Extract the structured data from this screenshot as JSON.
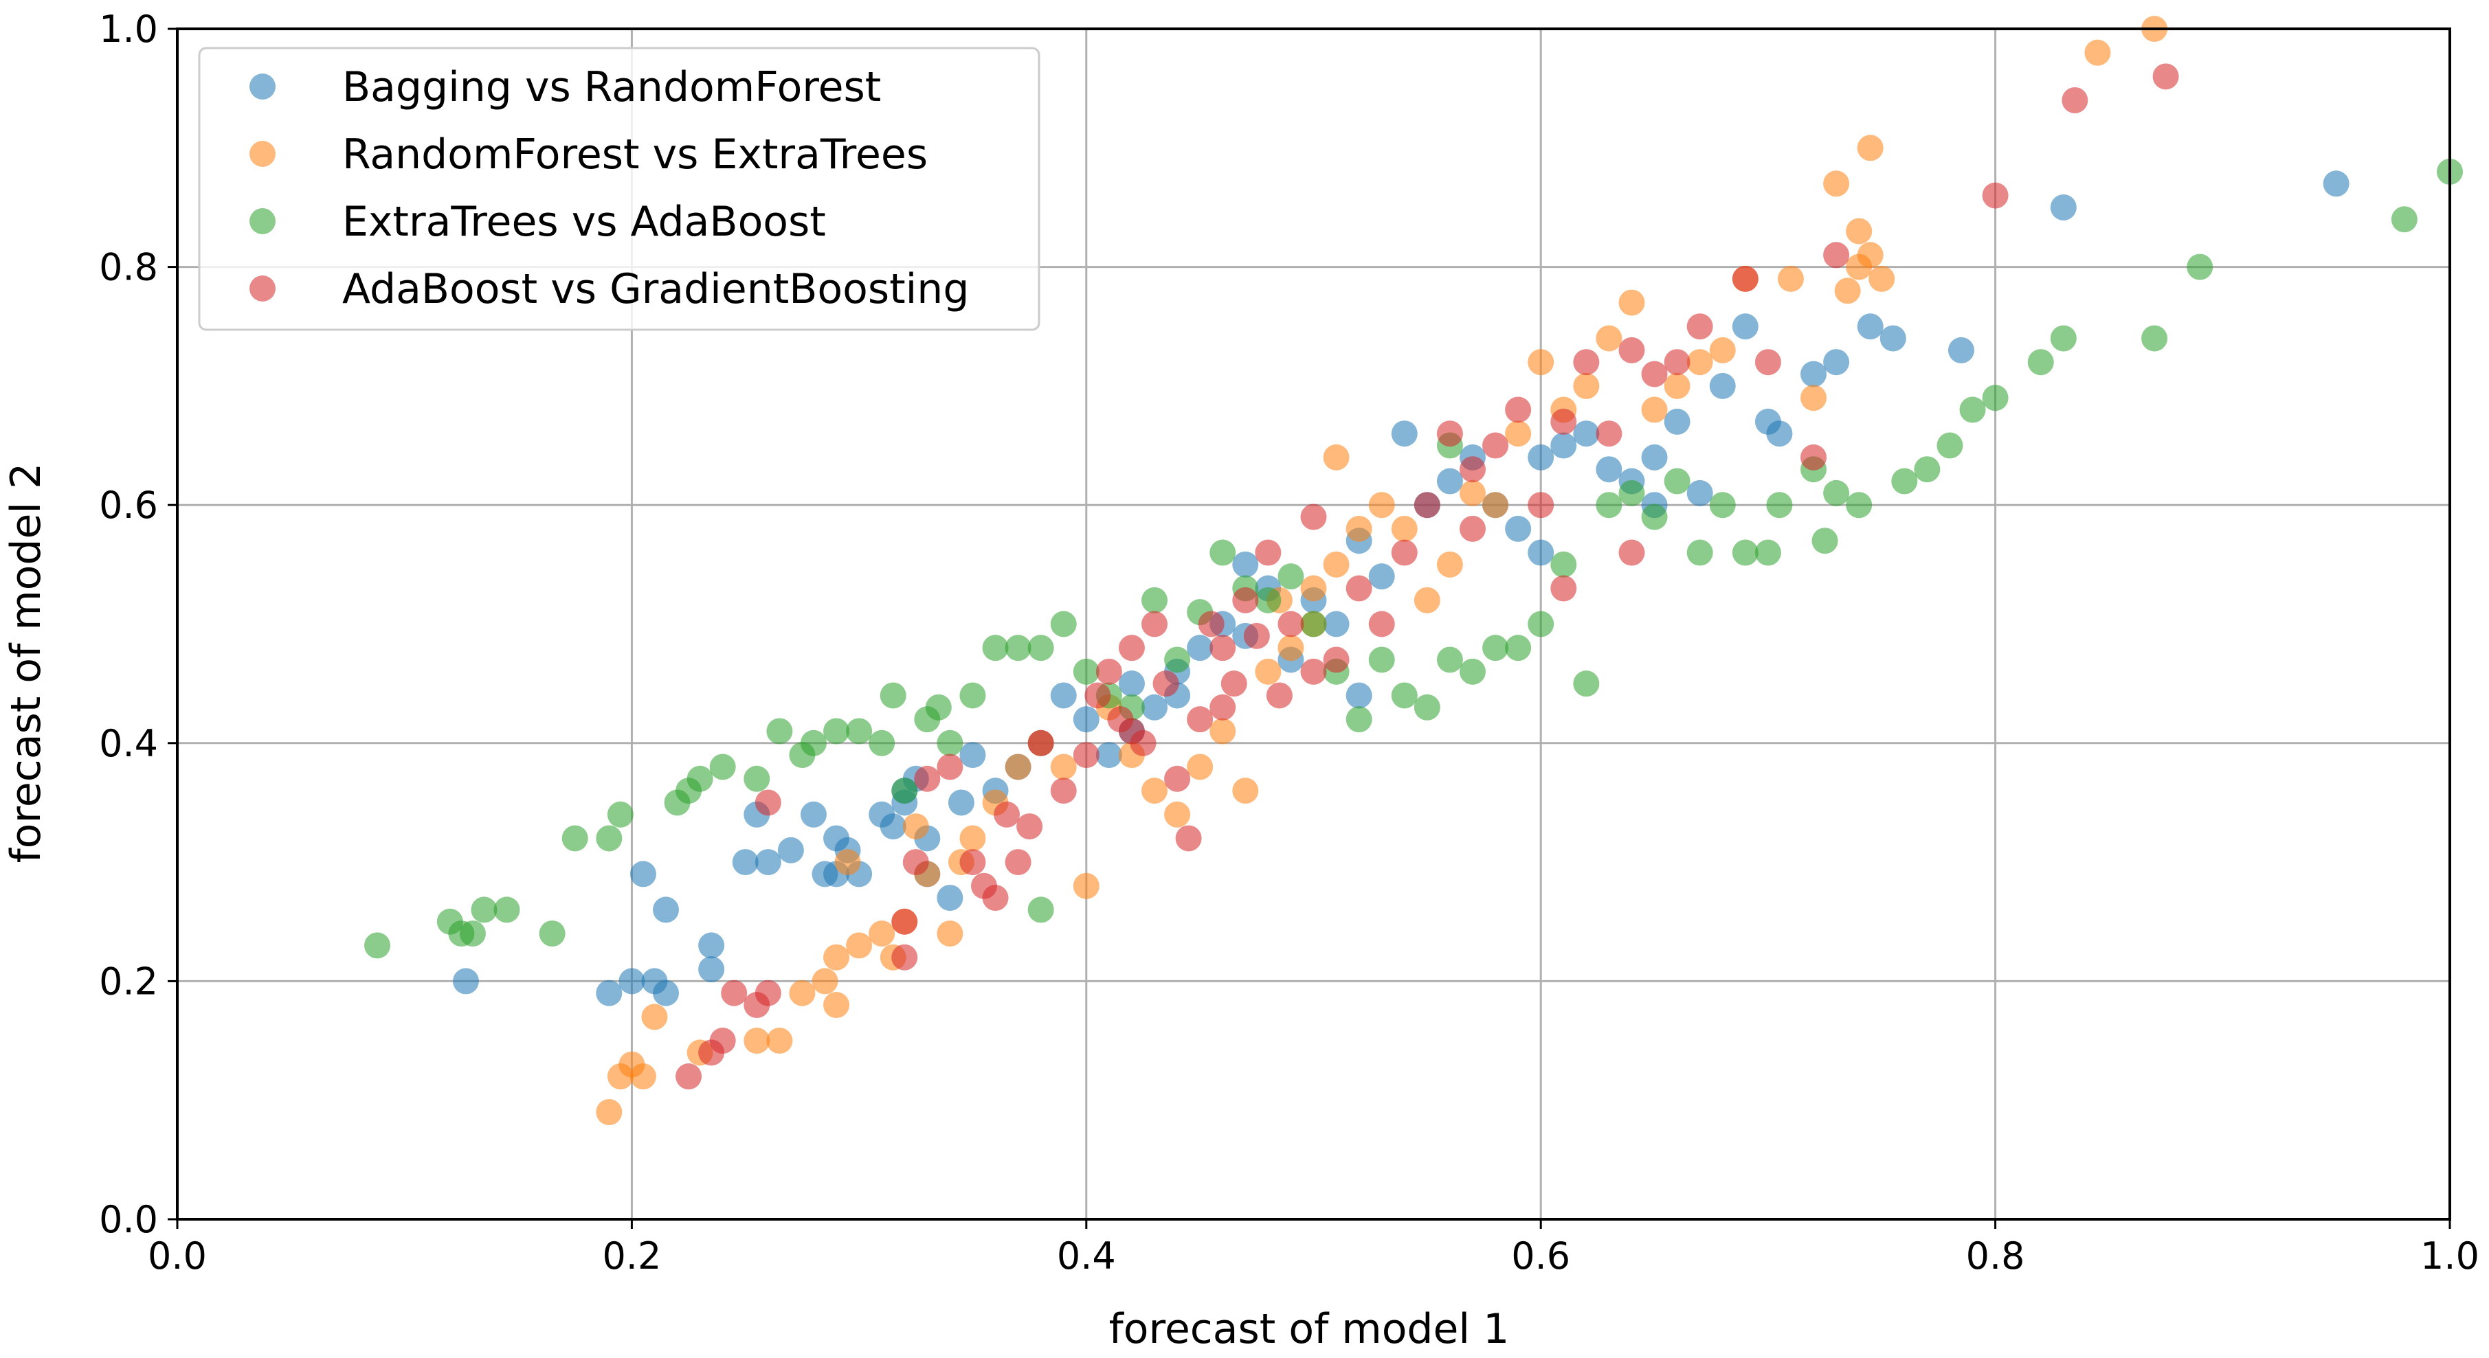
{
  "chart_data": {
    "type": "scatter",
    "title": "",
    "xlabel": "forecast of model 1",
    "ylabel": "forecast of model 2",
    "xlim": [
      0.0,
      1.0
    ],
    "ylim": [
      0.0,
      1.0
    ],
    "xticks": [
      0.0,
      0.2,
      0.4,
      0.6,
      0.8,
      1.0
    ],
    "yticks": [
      0.0,
      0.2,
      0.4,
      0.6,
      0.8,
      1.0
    ],
    "xtick_labels": [
      "0.0",
      "0.2",
      "0.4",
      "0.6",
      "0.8",
      "1.0"
    ],
    "ytick_labels": [
      "0.0",
      "0.2",
      "0.4",
      "0.6",
      "0.8",
      "1.0"
    ],
    "grid": true,
    "legend_position": "top-left",
    "series": [
      {
        "name": "Bagging vs RandomForest",
        "color": "#1f77b4",
        "points": [
          [
            0.19,
            0.19
          ],
          [
            0.2,
            0.2
          ],
          [
            0.205,
            0.29
          ],
          [
            0.21,
            0.2
          ],
          [
            0.215,
            0.19
          ],
          [
            0.215,
            0.26
          ],
          [
            0.235,
            0.23
          ],
          [
            0.235,
            0.21
          ],
          [
            0.127,
            0.2
          ],
          [
            0.25,
            0.3
          ],
          [
            0.255,
            0.34
          ],
          [
            0.26,
            0.3
          ],
          [
            0.27,
            0.31
          ],
          [
            0.28,
            0.34
          ],
          [
            0.285,
            0.29
          ],
          [
            0.29,
            0.29
          ],
          [
            0.29,
            0.32
          ],
          [
            0.295,
            0.31
          ],
          [
            0.3,
            0.29
          ],
          [
            0.31,
            0.34
          ],
          [
            0.315,
            0.33
          ],
          [
            0.32,
            0.35
          ],
          [
            0.32,
            0.36
          ],
          [
            0.325,
            0.37
          ],
          [
            0.33,
            0.32
          ],
          [
            0.33,
            0.29
          ],
          [
            0.34,
            0.27
          ],
          [
            0.345,
            0.35
          ],
          [
            0.35,
            0.39
          ],
          [
            0.36,
            0.36
          ],
          [
            0.37,
            0.38
          ],
          [
            0.38,
            0.4
          ],
          [
            0.39,
            0.44
          ],
          [
            0.4,
            0.42
          ],
          [
            0.41,
            0.39
          ],
          [
            0.42,
            0.45
          ],
          [
            0.43,
            0.43
          ],
          [
            0.44,
            0.44
          ],
          [
            0.45,
            0.48
          ],
          [
            0.46,
            0.5
          ],
          [
            0.47,
            0.55
          ],
          [
            0.48,
            0.53
          ],
          [
            0.49,
            0.47
          ],
          [
            0.5,
            0.52
          ],
          [
            0.51,
            0.5
          ],
          [
            0.52,
            0.57
          ],
          [
            0.53,
            0.54
          ],
          [
            0.54,
            0.66
          ],
          [
            0.55,
            0.6
          ],
          [
            0.56,
            0.62
          ],
          [
            0.57,
            0.64
          ],
          [
            0.58,
            0.6
          ],
          [
            0.59,
            0.58
          ],
          [
            0.6,
            0.64
          ],
          [
            0.61,
            0.65
          ],
          [
            0.62,
            0.66
          ],
          [
            0.63,
            0.63
          ],
          [
            0.64,
            0.62
          ],
          [
            0.65,
            0.6
          ],
          [
            0.66,
            0.67
          ],
          [
            0.67,
            0.61
          ],
          [
            0.68,
            0.7
          ],
          [
            0.69,
            0.75
          ],
          [
            0.7,
            0.67
          ],
          [
            0.705,
            0.66
          ],
          [
            0.72,
            0.71
          ],
          [
            0.73,
            0.72
          ],
          [
            0.745,
            0.75
          ],
          [
            0.755,
            0.74
          ],
          [
            0.785,
            0.73
          ],
          [
            0.83,
            0.85
          ],
          [
            0.95,
            0.87
          ],
          [
            0.42,
            0.41
          ],
          [
            0.44,
            0.46
          ],
          [
            0.52,
            0.44
          ],
          [
            0.47,
            0.49
          ],
          [
            0.6,
            0.56
          ],
          [
            0.65,
            0.64
          ]
        ]
      },
      {
        "name": "RandomForest vs ExtraTrees",
        "color": "#ff7f0e",
        "points": [
          [
            0.19,
            0.09
          ],
          [
            0.195,
            0.12
          ],
          [
            0.2,
            0.13
          ],
          [
            0.205,
            0.12
          ],
          [
            0.21,
            0.17
          ],
          [
            0.23,
            0.14
          ],
          [
            0.255,
            0.15
          ],
          [
            0.265,
            0.15
          ],
          [
            0.275,
            0.19
          ],
          [
            0.285,
            0.2
          ],
          [
            0.29,
            0.22
          ],
          [
            0.29,
            0.18
          ],
          [
            0.295,
            0.3
          ],
          [
            0.3,
            0.23
          ],
          [
            0.31,
            0.24
          ],
          [
            0.315,
            0.22
          ],
          [
            0.32,
            0.25
          ],
          [
            0.325,
            0.33
          ],
          [
            0.33,
            0.29
          ],
          [
            0.34,
            0.24
          ],
          [
            0.345,
            0.3
          ],
          [
            0.35,
            0.32
          ],
          [
            0.36,
            0.35
          ],
          [
            0.37,
            0.38
          ],
          [
            0.38,
            0.4
          ],
          [
            0.39,
            0.38
          ],
          [
            0.4,
            0.28
          ],
          [
            0.41,
            0.43
          ],
          [
            0.42,
            0.39
          ],
          [
            0.43,
            0.36
          ],
          [
            0.44,
            0.34
          ],
          [
            0.45,
            0.38
          ],
          [
            0.46,
            0.41
          ],
          [
            0.47,
            0.36
          ],
          [
            0.48,
            0.46
          ],
          [
            0.49,
            0.48
          ],
          [
            0.5,
            0.53
          ],
          [
            0.51,
            0.55
          ],
          [
            0.52,
            0.58
          ],
          [
            0.53,
            0.6
          ],
          [
            0.54,
            0.58
          ],
          [
            0.55,
            0.52
          ],
          [
            0.56,
            0.55
          ],
          [
            0.57,
            0.61
          ],
          [
            0.58,
            0.6
          ],
          [
            0.59,
            0.66
          ],
          [
            0.6,
            0.72
          ],
          [
            0.61,
            0.68
          ],
          [
            0.62,
            0.7
          ],
          [
            0.63,
            0.74
          ],
          [
            0.64,
            0.77
          ],
          [
            0.65,
            0.68
          ],
          [
            0.66,
            0.7
          ],
          [
            0.67,
            0.72
          ],
          [
            0.68,
            0.73
          ],
          [
            0.69,
            0.79
          ],
          [
            0.71,
            0.79
          ],
          [
            0.72,
            0.69
          ],
          [
            0.73,
            0.87
          ],
          [
            0.735,
            0.78
          ],
          [
            0.74,
            0.83
          ],
          [
            0.745,
            0.81
          ],
          [
            0.75,
            0.79
          ],
          [
            0.745,
            0.9
          ],
          [
            0.74,
            0.8
          ],
          [
            0.845,
            0.98
          ],
          [
            0.87,
            1.0
          ],
          [
            0.51,
            0.64
          ],
          [
            0.485,
            0.52
          ],
          [
            0.5,
            0.5
          ]
        ]
      },
      {
        "name": "ExtraTrees vs AdaBoost",
        "color": "#2ca02c",
        "points": [
          [
            0.088,
            0.23
          ],
          [
            0.12,
            0.25
          ],
          [
            0.125,
            0.24
          ],
          [
            0.13,
            0.24
          ],
          [
            0.135,
            0.26
          ],
          [
            0.145,
            0.26
          ],
          [
            0.165,
            0.24
          ],
          [
            0.175,
            0.32
          ],
          [
            0.19,
            0.32
          ],
          [
            0.195,
            0.34
          ],
          [
            0.22,
            0.35
          ],
          [
            0.225,
            0.36
          ],
          [
            0.23,
            0.37
          ],
          [
            0.24,
            0.38
          ],
          [
            0.255,
            0.37
          ],
          [
            0.265,
            0.41
          ],
          [
            0.275,
            0.39
          ],
          [
            0.28,
            0.4
          ],
          [
            0.29,
            0.41
          ],
          [
            0.3,
            0.41
          ],
          [
            0.31,
            0.4
          ],
          [
            0.315,
            0.44
          ],
          [
            0.32,
            0.36
          ],
          [
            0.33,
            0.42
          ],
          [
            0.335,
            0.43
          ],
          [
            0.34,
            0.4
          ],
          [
            0.35,
            0.44
          ],
          [
            0.36,
            0.48
          ],
          [
            0.37,
            0.48
          ],
          [
            0.38,
            0.48
          ],
          [
            0.39,
            0.5
          ],
          [
            0.4,
            0.46
          ],
          [
            0.41,
            0.44
          ],
          [
            0.42,
            0.43
          ],
          [
            0.43,
            0.52
          ],
          [
            0.44,
            0.47
          ],
          [
            0.45,
            0.51
          ],
          [
            0.46,
            0.56
          ],
          [
            0.47,
            0.53
          ],
          [
            0.48,
            0.52
          ],
          [
            0.49,
            0.54
          ],
          [
            0.5,
            0.5
          ],
          [
            0.51,
            0.46
          ],
          [
            0.52,
            0.42
          ],
          [
            0.53,
            0.47
          ],
          [
            0.54,
            0.44
          ],
          [
            0.55,
            0.43
          ],
          [
            0.56,
            0.47
          ],
          [
            0.57,
            0.46
          ],
          [
            0.58,
            0.48
          ],
          [
            0.59,
            0.48
          ],
          [
            0.6,
            0.5
          ],
          [
            0.61,
            0.55
          ],
          [
            0.62,
            0.45
          ],
          [
            0.63,
            0.6
          ],
          [
            0.64,
            0.61
          ],
          [
            0.65,
            0.59
          ],
          [
            0.66,
            0.62
          ],
          [
            0.67,
            0.56
          ],
          [
            0.68,
            0.6
          ],
          [
            0.69,
            0.56
          ],
          [
            0.7,
            0.56
          ],
          [
            0.705,
            0.6
          ],
          [
            0.72,
            0.63
          ],
          [
            0.725,
            0.57
          ],
          [
            0.73,
            0.61
          ],
          [
            0.74,
            0.6
          ],
          [
            0.76,
            0.62
          ],
          [
            0.77,
            0.63
          ],
          [
            0.78,
            0.65
          ],
          [
            0.79,
            0.68
          ],
          [
            0.8,
            0.69
          ],
          [
            0.82,
            0.72
          ],
          [
            0.83,
            0.74
          ],
          [
            0.87,
            0.74
          ],
          [
            0.89,
            0.8
          ],
          [
            0.98,
            0.84
          ],
          [
            1.0,
            0.88
          ],
          [
            0.38,
            0.26
          ],
          [
            0.56,
            0.65
          ]
        ]
      },
      {
        "name": "AdaBoost vs GradientBoosting",
        "color": "#d62728",
        "points": [
          [
            0.225,
            0.12
          ],
          [
            0.235,
            0.14
          ],
          [
            0.24,
            0.15
          ],
          [
            0.245,
            0.19
          ],
          [
            0.255,
            0.18
          ],
          [
            0.26,
            0.19
          ],
          [
            0.26,
            0.35
          ],
          [
            0.32,
            0.22
          ],
          [
            0.32,
            0.25
          ],
          [
            0.325,
            0.3
          ],
          [
            0.33,
            0.37
          ],
          [
            0.34,
            0.38
          ],
          [
            0.35,
            0.3
          ],
          [
            0.355,
            0.28
          ],
          [
            0.36,
            0.27
          ],
          [
            0.365,
            0.34
          ],
          [
            0.37,
            0.3
          ],
          [
            0.375,
            0.33
          ],
          [
            0.38,
            0.4
          ],
          [
            0.39,
            0.36
          ],
          [
            0.4,
            0.39
          ],
          [
            0.405,
            0.44
          ],
          [
            0.41,
            0.46
          ],
          [
            0.415,
            0.42
          ],
          [
            0.42,
            0.48
          ],
          [
            0.425,
            0.4
          ],
          [
            0.43,
            0.5
          ],
          [
            0.435,
            0.45
          ],
          [
            0.44,
            0.37
          ],
          [
            0.445,
            0.32
          ],
          [
            0.45,
            0.42
          ],
          [
            0.455,
            0.5
          ],
          [
            0.46,
            0.48
          ],
          [
            0.465,
            0.45
          ],
          [
            0.47,
            0.52
          ],
          [
            0.475,
            0.49
          ],
          [
            0.48,
            0.56
          ],
          [
            0.485,
            0.44
          ],
          [
            0.49,
            0.5
          ],
          [
            0.5,
            0.59
          ],
          [
            0.51,
            0.47
          ],
          [
            0.52,
            0.53
          ],
          [
            0.53,
            0.5
          ],
          [
            0.54,
            0.56
          ],
          [
            0.55,
            0.6
          ],
          [
            0.56,
            0.66
          ],
          [
            0.57,
            0.63
          ],
          [
            0.58,
            0.65
          ],
          [
            0.59,
            0.68
          ],
          [
            0.6,
            0.6
          ],
          [
            0.61,
            0.67
          ],
          [
            0.62,
            0.72
          ],
          [
            0.63,
            0.66
          ],
          [
            0.64,
            0.73
          ],
          [
            0.65,
            0.71
          ],
          [
            0.66,
            0.72
          ],
          [
            0.67,
            0.75
          ],
          [
            0.69,
            0.79
          ],
          [
            0.7,
            0.72
          ],
          [
            0.72,
            0.64
          ],
          [
            0.73,
            0.81
          ],
          [
            0.8,
            0.86
          ],
          [
            0.835,
            0.94
          ],
          [
            0.875,
            0.96
          ],
          [
            0.61,
            0.53
          ],
          [
            0.64,
            0.56
          ],
          [
            0.42,
            0.41
          ],
          [
            0.46,
            0.43
          ],
          [
            0.5,
            0.46
          ],
          [
            0.57,
            0.58
          ]
        ]
      }
    ]
  }
}
